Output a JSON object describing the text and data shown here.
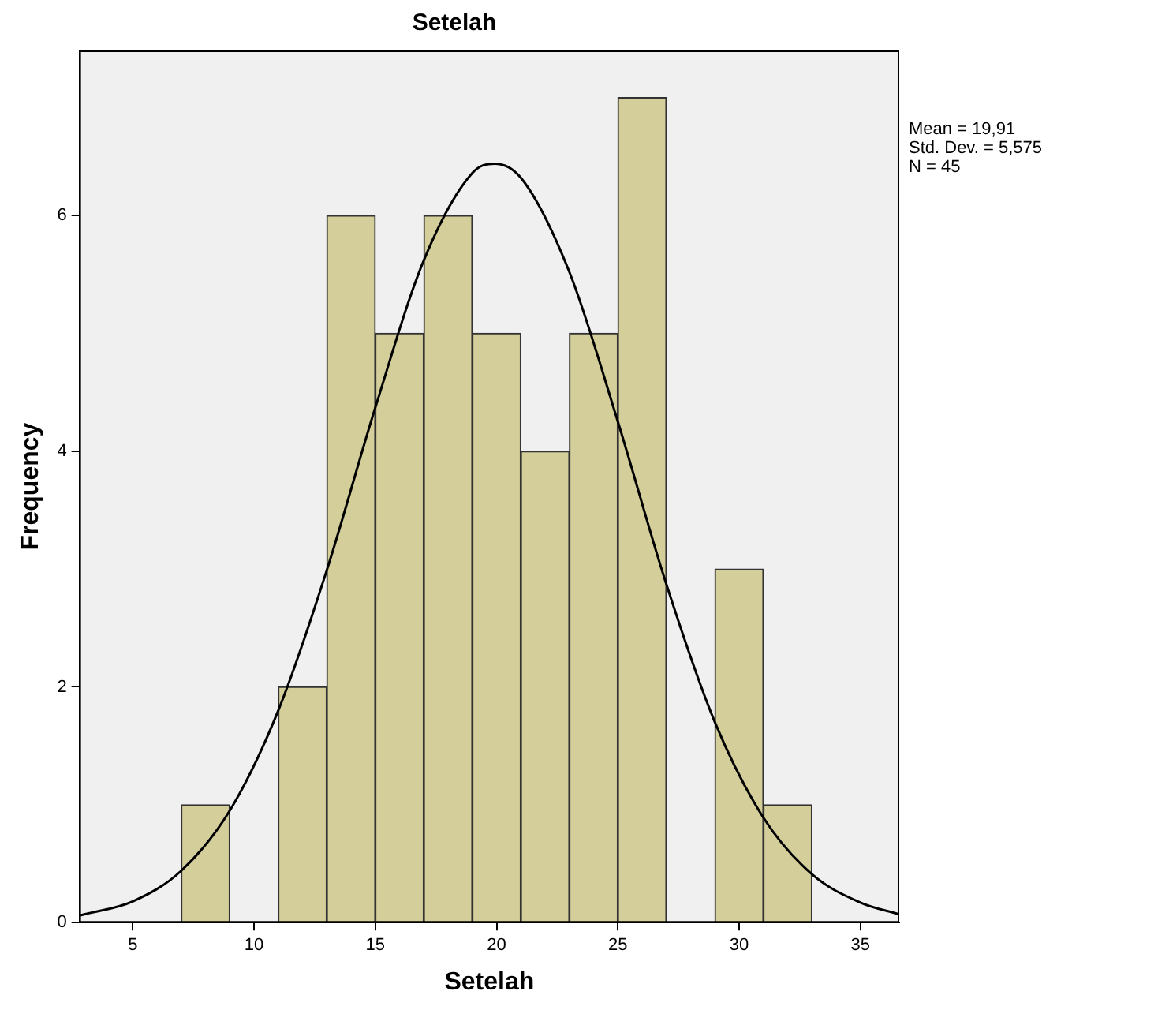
{
  "chart_data": {
    "type": "histogram",
    "title": "Setelah",
    "xlabel": "Setelah",
    "ylabel": "Frequency",
    "annotations": [
      "Mean = 19,91",
      "Std. Dev. = 5,575",
      "N = 45"
    ],
    "bins": [
      7,
      9,
      11,
      13,
      15,
      17,
      19,
      21,
      23,
      25,
      27,
      29,
      31,
      33
    ],
    "series": [
      {
        "color": "#d3ce9a",
        "values": [
          1,
          0,
          2,
          6,
          5,
          6,
          5,
          4,
          5,
          7,
          0,
          3,
          1
        ]
      },
      {
        "type": "line",
        "color": "#000000",
        "x": [
          2.8,
          3,
          5,
          7,
          9,
          11,
          13,
          15,
          17,
          19,
          19.91,
          21,
          23,
          25,
          27,
          29,
          31,
          33,
          35,
          36.6
        ],
        "values": [
          0.06,
          0.07,
          0.18,
          0.44,
          0.95,
          1.8,
          2.99,
          4.37,
          5.62,
          6.36,
          6.44,
          6.32,
          5.52,
          4.25,
          2.87,
          1.7,
          0.89,
          0.41,
          0.17,
          0.07
        ]
      }
    ],
    "xlim": [
      2.8,
      36.6
    ],
    "xticks": [
      5,
      10,
      15,
      20,
      25,
      30,
      35
    ],
    "ylim": [
      0,
      7.4
    ],
    "yticks": [
      0,
      2,
      4,
      6
    ],
    "grid": false,
    "legend": false,
    "marker": "none",
    "line_style": "solid"
  }
}
